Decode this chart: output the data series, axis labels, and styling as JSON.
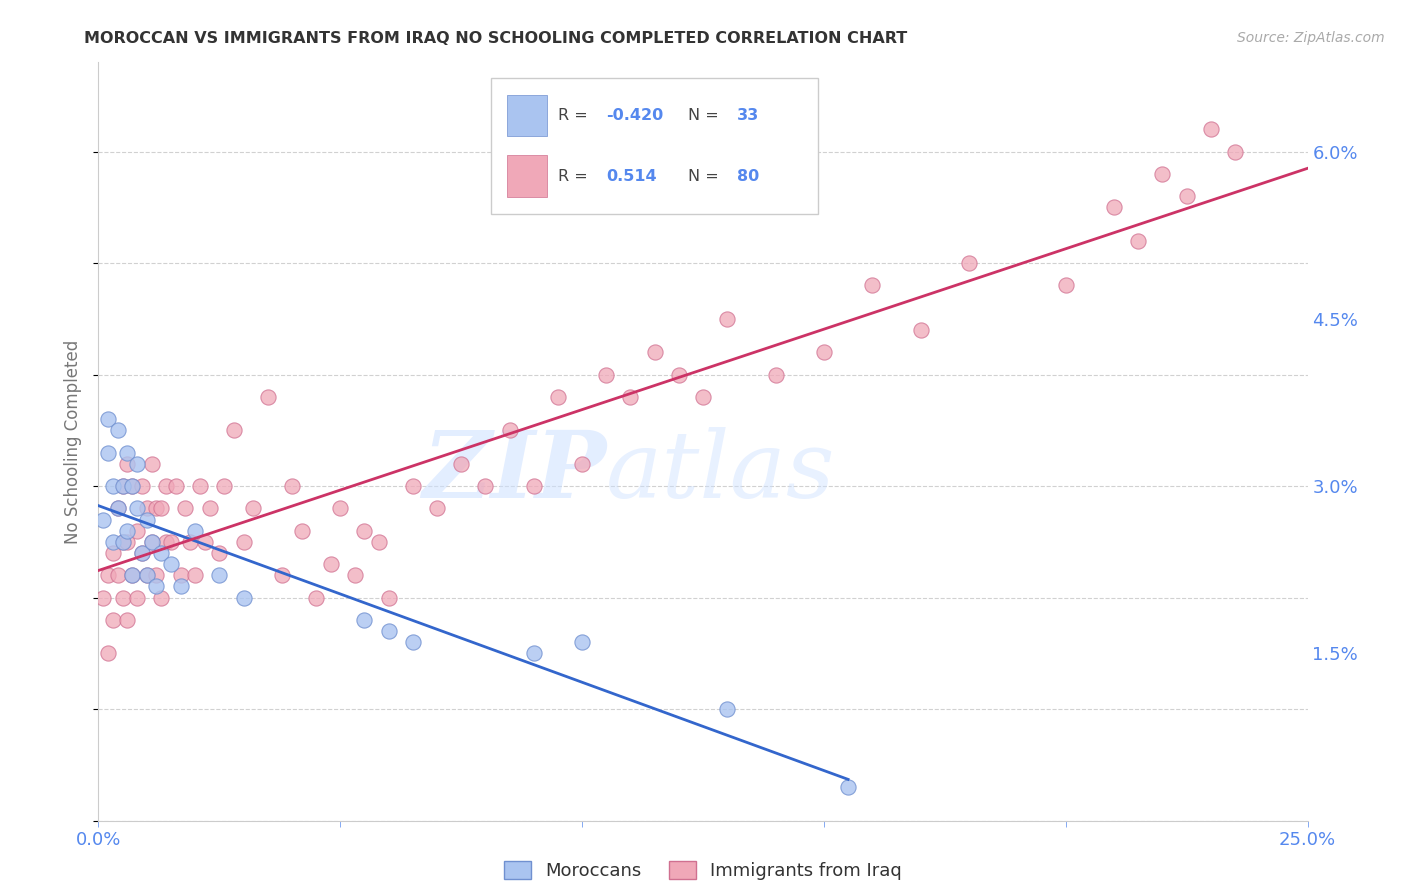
{
  "title": "MOROCCAN VS IMMIGRANTS FROM IRAQ NO SCHOOLING COMPLETED CORRELATION CHART",
  "source": "Source: ZipAtlas.com",
  "ylabel": "No Schooling Completed",
  "x_min": 0.0,
  "x_max": 0.25,
  "y_min": 0.0,
  "y_max": 0.068,
  "y_ticks": [
    0.0,
    0.015,
    0.03,
    0.045,
    0.06
  ],
  "y_tick_labels": [
    "",
    "1.5%",
    "3.0%",
    "4.5%",
    "6.0%"
  ],
  "moroccan_R": -0.42,
  "moroccan_N": 33,
  "iraq_R": 0.514,
  "iraq_N": 80,
  "legend_label_moroccan": "Moroccans",
  "legend_label_iraq": "Immigrants from Iraq",
  "moroccan_color": "#aac4f0",
  "moroccan_edge": "#7090d0",
  "iraq_color": "#f0a8b8",
  "iraq_edge": "#d07090",
  "moroccan_line_color": "#3366cc",
  "iraq_line_color": "#cc3366",
  "watermark_zip": "ZIP",
  "watermark_atlas": "atlas",
  "background_color": "#ffffff",
  "grid_color": "#cccccc",
  "title_color": "#333333",
  "label_color": "#5588ee",
  "source_color": "#aaaaaa",
  "moroccan_x": [
    0.001,
    0.002,
    0.002,
    0.003,
    0.003,
    0.004,
    0.004,
    0.005,
    0.005,
    0.006,
    0.006,
    0.007,
    0.007,
    0.008,
    0.008,
    0.009,
    0.01,
    0.01,
    0.011,
    0.012,
    0.013,
    0.015,
    0.017,
    0.02,
    0.025,
    0.03,
    0.055,
    0.06,
    0.065,
    0.09,
    0.1,
    0.13,
    0.155
  ],
  "moroccan_y": [
    0.027,
    0.033,
    0.036,
    0.025,
    0.03,
    0.035,
    0.028,
    0.03,
    0.025,
    0.033,
    0.026,
    0.03,
    0.022,
    0.028,
    0.032,
    0.024,
    0.027,
    0.022,
    0.025,
    0.021,
    0.024,
    0.023,
    0.021,
    0.026,
    0.022,
    0.02,
    0.018,
    0.017,
    0.016,
    0.015,
    0.016,
    0.01,
    0.003
  ],
  "iraq_x": [
    0.001,
    0.002,
    0.002,
    0.003,
    0.003,
    0.004,
    0.004,
    0.005,
    0.005,
    0.005,
    0.006,
    0.006,
    0.006,
    0.007,
    0.007,
    0.008,
    0.008,
    0.009,
    0.009,
    0.01,
    0.01,
    0.011,
    0.011,
    0.012,
    0.012,
    0.013,
    0.013,
    0.014,
    0.014,
    0.015,
    0.016,
    0.017,
    0.018,
    0.019,
    0.02,
    0.021,
    0.022,
    0.023,
    0.025,
    0.026,
    0.028,
    0.03,
    0.032,
    0.035,
    0.038,
    0.04,
    0.042,
    0.045,
    0.048,
    0.05,
    0.053,
    0.055,
    0.058,
    0.06,
    0.065,
    0.07,
    0.075,
    0.08,
    0.085,
    0.09,
    0.095,
    0.1,
    0.105,
    0.11,
    0.115,
    0.12,
    0.125,
    0.13,
    0.14,
    0.15,
    0.16,
    0.17,
    0.18,
    0.2,
    0.21,
    0.215,
    0.22,
    0.225,
    0.23,
    0.235
  ],
  "iraq_y": [
    0.02,
    0.015,
    0.022,
    0.018,
    0.024,
    0.022,
    0.028,
    0.02,
    0.025,
    0.03,
    0.018,
    0.025,
    0.032,
    0.022,
    0.03,
    0.02,
    0.026,
    0.024,
    0.03,
    0.022,
    0.028,
    0.025,
    0.032,
    0.022,
    0.028,
    0.02,
    0.028,
    0.025,
    0.03,
    0.025,
    0.03,
    0.022,
    0.028,
    0.025,
    0.022,
    0.03,
    0.025,
    0.028,
    0.024,
    0.03,
    0.035,
    0.025,
    0.028,
    0.038,
    0.022,
    0.03,
    0.026,
    0.02,
    0.023,
    0.028,
    0.022,
    0.026,
    0.025,
    0.02,
    0.03,
    0.028,
    0.032,
    0.03,
    0.035,
    0.03,
    0.038,
    0.032,
    0.04,
    0.038,
    0.042,
    0.04,
    0.038,
    0.045,
    0.04,
    0.042,
    0.048,
    0.044,
    0.05,
    0.048,
    0.055,
    0.052,
    0.058,
    0.056,
    0.062,
    0.06
  ]
}
